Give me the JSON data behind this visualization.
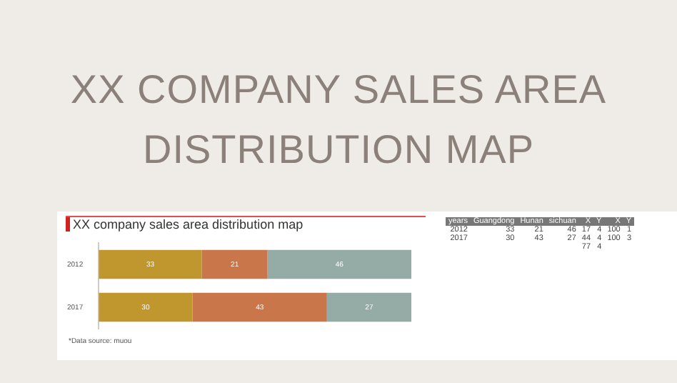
{
  "chart_data": {
    "type": "bar",
    "orientation": "horizontal",
    "stacked": true,
    "data_labels": true,
    "legend": false,
    "title": "XX COMPANY SALES AREA DISTRIBUTION MAP",
    "subtitle": "XX company sales area distribution map",
    "categories": [
      "2012",
      "2017"
    ],
    "series": [
      {
        "color": "#c0962f",
        "values": [
          33,
          30
        ]
      },
      {
        "color": "#c8764a",
        "values": [
          21,
          43
        ]
      },
      {
        "color": "#95aba5",
        "values": [
          46,
          27
        ]
      }
    ],
    "annotations": [
      "*Data source: muou",
      "years Guangdong Hunan sichuan X Y X Y",
      "2012 33 21 46 17 4 100 1",
      "2017 30 43 27 44 4 100 3",
      "77 4"
    ]
  }
}
